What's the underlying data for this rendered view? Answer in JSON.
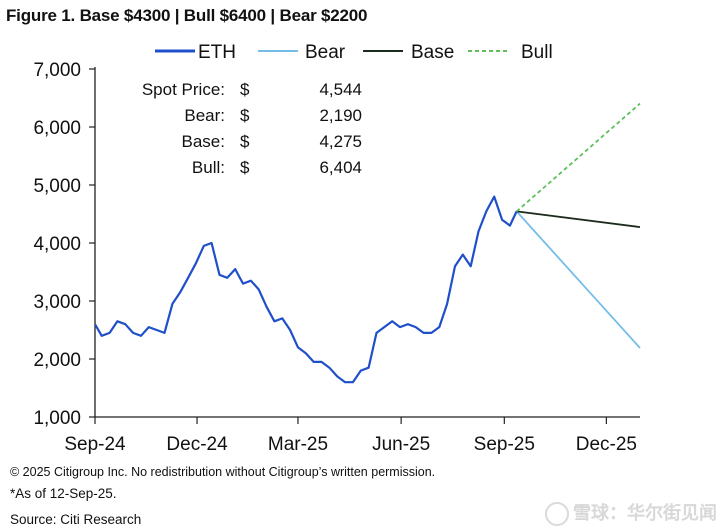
{
  "title": "Figure 1. Base $4300 | Bull $6400 | Bear $2200",
  "footnotes": {
    "copyright": "© 2025 Citigroup Inc. No redistribution without Citigroup’s written permission.",
    "asof": "*As of 12-Sep-25.",
    "source": "Source: Citi Research"
  },
  "watermark": "雪球：华尔街见闻",
  "chart_data": {
    "type": "line",
    "title": "Figure 1. Base $4300 | Bull $6400 | Bear $2200",
    "xlabel": "",
    "ylabel": "",
    "ylim": [
      1000,
      7000
    ],
    "y_ticks": [
      "1,000",
      "2,000",
      "3,000",
      "4,000",
      "5,000",
      "6,000",
      "7,000"
    ],
    "x_ticks": [
      "Sep-24",
      "Dec-24",
      "Mar-25",
      "Jun-25",
      "Sep-25",
      "Dec-25"
    ],
    "xlim": [
      "2024-09-01",
      "2025-12-31"
    ],
    "legend": {
      "position": "top"
    },
    "annotations": [
      {
        "label": "Spot Price:",
        "currency": "$",
        "value": "4,544"
      },
      {
        "label": "Bear:",
        "currency": "$",
        "value": "2,190"
      },
      {
        "label": "Base:",
        "currency": "$",
        "value": "4,275"
      },
      {
        "label": "Bull:",
        "currency": "$",
        "value": "6,404"
      }
    ],
    "series": [
      {
        "name": "ETH",
        "color": "#1f4fc9",
        "style": "solid",
        "x": [
          "2024-09-01",
          "2024-09-07",
          "2024-09-14",
          "2024-09-21",
          "2024-09-28",
          "2024-10-05",
          "2024-10-12",
          "2024-10-19",
          "2024-10-26",
          "2024-11-02",
          "2024-11-09",
          "2024-11-16",
          "2024-11-23",
          "2024-11-30",
          "2024-12-07",
          "2024-12-14",
          "2024-12-21",
          "2024-12-28",
          "2025-01-04",
          "2025-01-11",
          "2025-01-18",
          "2025-01-25",
          "2025-02-01",
          "2025-02-08",
          "2025-02-15",
          "2025-02-22",
          "2025-03-01",
          "2025-03-08",
          "2025-03-15",
          "2025-03-22",
          "2025-03-29",
          "2025-04-05",
          "2025-04-12",
          "2025-04-19",
          "2025-04-26",
          "2025-05-03",
          "2025-05-10",
          "2025-05-17",
          "2025-05-24",
          "2025-05-31",
          "2025-06-07",
          "2025-06-14",
          "2025-06-21",
          "2025-06-28",
          "2025-07-05",
          "2025-07-12",
          "2025-07-19",
          "2025-07-26",
          "2025-08-02",
          "2025-08-09",
          "2025-08-16",
          "2025-08-23",
          "2025-08-30",
          "2025-09-06",
          "2025-09-12"
        ],
        "values": [
          2600,
          2400,
          2450,
          2650,
          2600,
          2450,
          2400,
          2550,
          2500,
          2450,
          2950,
          3150,
          3400,
          3650,
          3950,
          4000,
          3450,
          3400,
          3550,
          3300,
          3350,
          3200,
          2900,
          2650,
          2700,
          2500,
          2200,
          2100,
          1950,
          1950,
          1850,
          1700,
          1600,
          1600,
          1800,
          1850,
          2450,
          2550,
          2650,
          2550,
          2600,
          2550,
          2450,
          2450,
          2550,
          2950,
          3600,
          3800,
          3600,
          4200,
          4550,
          4800,
          4400,
          4300,
          4544
        ]
      },
      {
        "name": "Bear",
        "color": "#74bde8",
        "style": "solid",
        "x": [
          "2025-09-12",
          "2025-12-31"
        ],
        "values": [
          4544,
          2190
        ]
      },
      {
        "name": "Base",
        "color": "#1c2b1c",
        "style": "solid",
        "x": [
          "2025-09-12",
          "2025-12-31"
        ],
        "values": [
          4544,
          4275
        ]
      },
      {
        "name": "Bull",
        "color": "#5cbf5c",
        "style": "dashed",
        "x": [
          "2025-09-12",
          "2025-12-31"
        ],
        "values": [
          4544,
          6404
        ]
      }
    ]
  }
}
